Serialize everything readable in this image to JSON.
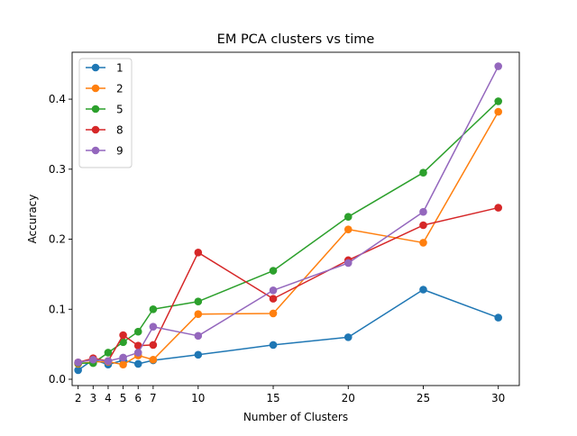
{
  "chart_data": {
    "type": "line",
    "title": "EM PCA clusters vs time",
    "xlabel": "Number of Clusters",
    "ylabel": "Accuracy",
    "x": [
      2,
      3,
      4,
      5,
      6,
      7,
      10,
      15,
      20,
      25,
      30
    ],
    "xlim": [
      1.6,
      31.4
    ],
    "ylim": [
      -0.009,
      0.467
    ],
    "xticks": [
      2,
      3,
      4,
      5,
      6,
      7,
      10,
      15,
      20,
      25,
      30
    ],
    "yticks": [
      0.0,
      0.1,
      0.2,
      0.3,
      0.4
    ],
    "ytick_labels": [
      "0.0",
      "0.1",
      "0.2",
      "0.3",
      "0.4"
    ],
    "grid": false,
    "legend_position": "top-left",
    "series": [
      {
        "name": "1",
        "color": "#1f77b4",
        "values": [
          0.013,
          0.028,
          0.021,
          0.027,
          0.022,
          0.027,
          0.035,
          0.049,
          0.06,
          0.128,
          0.088
        ]
      },
      {
        "name": "2",
        "color": "#ff7f0e",
        "values": [
          0.022,
          0.025,
          0.025,
          0.021,
          0.034,
          0.028,
          0.093,
          0.094,
          0.214,
          0.195,
          0.382
        ]
      },
      {
        "name": "5",
        "color": "#2ca02c",
        "values": [
          0.023,
          0.023,
          0.038,
          0.053,
          0.068,
          0.1,
          0.111,
          0.155,
          0.232,
          0.295,
          0.397
        ]
      },
      {
        "name": "8",
        "color": "#d62728",
        "values": [
          0.024,
          0.03,
          0.026,
          0.063,
          0.048,
          0.049,
          0.181,
          0.115,
          0.17,
          0.22,
          0.245
        ]
      },
      {
        "name": "9",
        "color": "#9467bd",
        "values": [
          0.024,
          0.028,
          0.026,
          0.031,
          0.038,
          0.075,
          0.062,
          0.127,
          0.166,
          0.239,
          0.447
        ]
      }
    ]
  }
}
